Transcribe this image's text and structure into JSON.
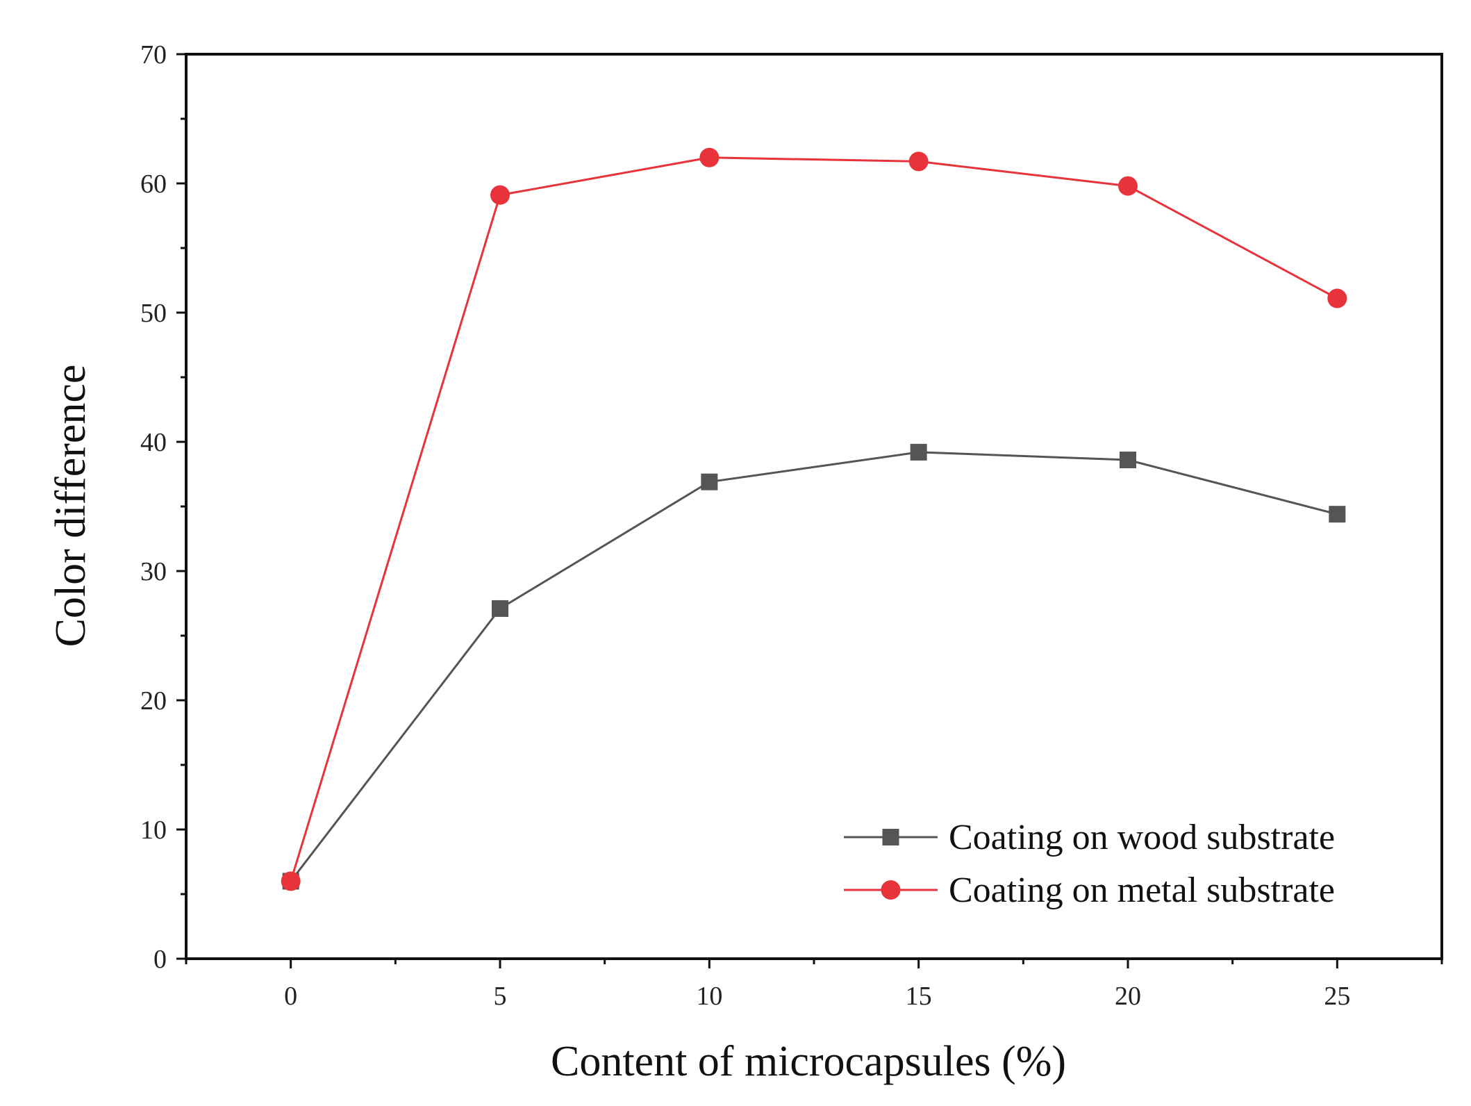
{
  "chart_data": {
    "type": "line",
    "title": "",
    "xlabel": "Content of microcapsules (%)",
    "ylabel": "Color difference",
    "x": [
      0,
      5,
      10,
      15,
      20,
      25
    ],
    "xlim": [
      -2.5,
      27.5
    ],
    "ylim": [
      0,
      70
    ],
    "x_ticks": [
      "0",
      "5",
      "10",
      "15",
      "20",
      "25"
    ],
    "y_ticks": [
      "0",
      "10",
      "20",
      "30",
      "40",
      "50",
      "60",
      "70"
    ],
    "grid": false,
    "legend_position": "bottom-right",
    "series": [
      {
        "name": "Coating on wood substrate",
        "marker": "square",
        "color": "#555555",
        "values": [
          6.0,
          27.1,
          36.9,
          39.2,
          38.6,
          34.4
        ]
      },
      {
        "name": "Coating on metal substrate",
        "marker": "circle",
        "color": "#e8333a",
        "values": [
          6.0,
          59.1,
          62.0,
          61.7,
          59.8,
          51.1
        ]
      }
    ]
  }
}
